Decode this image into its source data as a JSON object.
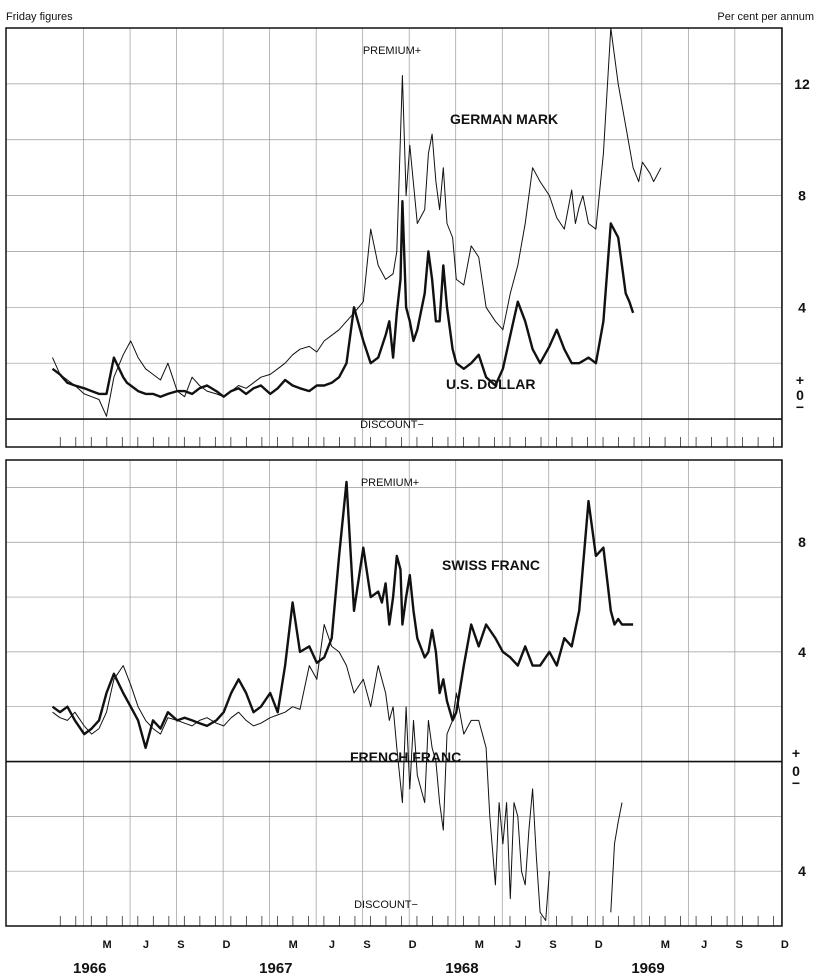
{
  "header": {
    "left_note": "Friday figures",
    "right_note": "Per cent per annum"
  },
  "chart_data": [
    {
      "type": "line",
      "panel": "top",
      "premium_label": "PREMIUM+",
      "discount_label": "DISCOUNT−",
      "zero_label_plus": "+",
      "zero_label": "0",
      "zero_label_minus": "−",
      "ylim": [
        -1,
        14
      ],
      "yticks": [
        0,
        4,
        8,
        12
      ],
      "ytick_labels": [
        "4",
        "8",
        "12"
      ],
      "grid": true,
      "series": [
        {
          "name": "GERMAN MARK",
          "style": "thin",
          "x": [
            1966.0,
            1966.04,
            1966.08,
            1966.12,
            1966.17,
            1966.21,
            1966.25,
            1966.29,
            1966.33,
            1966.38,
            1966.42,
            1966.44,
            1966.46,
            1966.5,
            1966.54,
            1966.58,
            1966.62,
            1966.67,
            1966.71,
            1966.75,
            1966.79,
            1966.83,
            1966.88,
            1966.92,
            1966.96,
            1967.0,
            1967.04,
            1967.08,
            1967.12,
            1967.17,
            1967.21,
            1967.25,
            1967.29,
            1967.33,
            1967.38,
            1967.42,
            1967.46,
            1967.5,
            1967.54,
            1967.58,
            1967.62,
            1967.67,
            1967.71,
            1967.75,
            1967.79,
            1967.83,
            1967.85,
            1967.88,
            1967.9,
            1967.92,
            1967.96,
            1968.0,
            1968.02,
            1968.04,
            1968.06,
            1968.08,
            1968.1,
            1968.12,
            1968.15,
            1968.17,
            1968.21,
            1968.25,
            1968.29,
            1968.33,
            1968.38,
            1968.42,
            1968.46,
            1968.5,
            1968.54,
            1968.58,
            1968.62,
            1968.67,
            1968.71,
            1968.75,
            1968.77,
            1968.79,
            1968.81,
            1968.83,
            1968.85,
            1968.88,
            1968.92,
            1968.96,
            1969.0,
            1969.04,
            1969.08,
            1969.12,
            1969.15,
            1969.17,
            1969.19,
            1969.21,
            1969.23,
            1969.27
          ],
          "values": [
            2.2,
            1.6,
            1.4,
            1.2,
            0.9,
            0.8,
            0.7,
            0.1,
            1.5,
            2.3,
            2.8,
            2.5,
            2.2,
            1.8,
            1.6,
            1.4,
            2.0,
            1.0,
            0.8,
            1.5,
            1.2,
            1.0,
            0.9,
            0.8,
            1.0,
            1.2,
            1.1,
            1.3,
            1.5,
            1.6,
            1.8,
            2.0,
            2.3,
            2.5,
            2.6,
            2.4,
            2.8,
            3.0,
            3.2,
            3.5,
            3.8,
            4.2,
            6.8,
            5.5,
            5.0,
            5.2,
            6.0,
            12.3,
            8.0,
            9.8,
            7.0,
            7.5,
            9.5,
            10.2,
            8.5,
            7.5,
            9.0,
            7.0,
            6.5,
            5.0,
            4.8,
            6.2,
            5.8,
            4.0,
            3.5,
            3.2,
            4.5,
            5.5,
            7.0,
            9.0,
            8.5,
            8.0,
            7.2,
            6.8,
            7.5,
            8.2,
            7.0,
            7.6,
            8.0,
            7.0,
            6.8,
            9.5,
            14.5,
            12.0,
            10.5,
            9.0,
            8.5,
            9.2,
            9.0,
            8.8,
            8.5,
            9.0
          ]
        },
        {
          "name": "U.S. DOLLAR",
          "style": "thick",
          "x": [
            1966.0,
            1966.04,
            1966.08,
            1966.12,
            1966.17,
            1966.21,
            1966.25,
            1966.29,
            1966.33,
            1966.38,
            1966.4,
            1966.42,
            1966.46,
            1966.5,
            1966.54,
            1966.58,
            1966.62,
            1966.67,
            1966.71,
            1966.75,
            1966.79,
            1966.83,
            1966.88,
            1966.92,
            1966.96,
            1967.0,
            1967.04,
            1967.08,
            1967.12,
            1967.17,
            1967.21,
            1967.25,
            1967.29,
            1967.33,
            1967.38,
            1967.42,
            1967.46,
            1967.5,
            1967.54,
            1967.58,
            1967.62,
            1967.67,
            1967.71,
            1967.75,
            1967.79,
            1967.81,
            1967.83,
            1967.85,
            1967.87,
            1967.88,
            1967.9,
            1967.92,
            1967.94,
            1967.96,
            1968.0,
            1968.02,
            1968.04,
            1968.06,
            1968.08,
            1968.1,
            1968.12,
            1968.15,
            1968.17,
            1968.21,
            1968.25,
            1968.29,
            1968.33,
            1968.38,
            1968.42,
            1968.46,
            1968.5,
            1968.54,
            1968.58,
            1968.62,
            1968.67,
            1968.71,
            1968.75,
            1968.79,
            1968.83,
            1968.88,
            1968.92,
            1968.96,
            1969.0,
            1969.04,
            1969.08,
            1969.1,
            1969.12
          ],
          "values": [
            1.8,
            1.6,
            1.3,
            1.2,
            1.1,
            1.0,
            0.9,
            0.9,
            2.2,
            1.5,
            1.3,
            1.2,
            1.0,
            0.9,
            0.9,
            0.8,
            0.9,
            1.0,
            1.0,
            0.9,
            1.1,
            1.2,
            1.0,
            0.8,
            1.0,
            1.1,
            0.9,
            1.1,
            1.2,
            0.9,
            1.1,
            1.4,
            1.2,
            1.1,
            1.0,
            1.2,
            1.2,
            1.3,
            1.5,
            2.0,
            4.0,
            2.8,
            2.0,
            2.2,
            3.0,
            3.5,
            2.2,
            3.8,
            5.0,
            7.8,
            4.0,
            3.5,
            2.8,
            3.2,
            4.5,
            6.0,
            5.0,
            3.5,
            3.5,
            5.5,
            4.0,
            2.5,
            2.0,
            1.8,
            2.0,
            2.3,
            1.5,
            1.2,
            1.8,
            3.0,
            4.2,
            3.5,
            2.5,
            2.0,
            2.6,
            3.2,
            2.5,
            2.0,
            2.0,
            2.2,
            2.0,
            3.5,
            7.0,
            6.5,
            4.5,
            4.2,
            3.8
          ]
        }
      ]
    },
    {
      "type": "line",
      "panel": "bottom",
      "premium_label": "PREMIUM+",
      "discount_label": "DISCOUNT−",
      "zero_label_plus": "+",
      "zero_label": "0",
      "zero_label_minus": "−",
      "ylim": [
        -6,
        11
      ],
      "yticks": [
        -4,
        0,
        4,
        8
      ],
      "ytick_labels": [
        "4",
        "4",
        "8"
      ],
      "grid": true,
      "series": [
        {
          "name": "SWISS FRANC",
          "style": "thick",
          "x": [
            1966.0,
            1966.04,
            1966.08,
            1966.12,
            1966.17,
            1966.21,
            1966.25,
            1966.29,
            1966.33,
            1966.38,
            1966.42,
            1966.46,
            1966.5,
            1966.54,
            1966.58,
            1966.62,
            1966.67,
            1966.71,
            1966.75,
            1966.79,
            1966.83,
            1966.88,
            1966.92,
            1966.96,
            1967.0,
            1967.04,
            1967.08,
            1967.12,
            1967.17,
            1967.21,
            1967.25,
            1967.29,
            1967.33,
            1967.38,
            1967.42,
            1967.46,
            1967.5,
            1967.54,
            1967.58,
            1967.62,
            1967.67,
            1967.71,
            1967.75,
            1967.77,
            1967.79,
            1967.81,
            1967.83,
            1967.85,
            1967.87,
            1967.88,
            1967.9,
            1967.92,
            1967.94,
            1967.96,
            1968.0,
            1968.02,
            1968.04,
            1968.06,
            1968.08,
            1968.1,
            1968.12,
            1968.15,
            1968.17,
            1968.21,
            1968.25,
            1968.29,
            1968.33,
            1968.38,
            1968.42,
            1968.46,
            1968.5,
            1968.54,
            1968.58,
            1968.62,
            1968.67,
            1968.71,
            1968.75,
            1968.79,
            1968.83,
            1968.88,
            1968.92,
            1968.96,
            1969.0,
            1969.02,
            1969.04,
            1969.06,
            1969.08,
            1969.1,
            1969.12
          ],
          "values": [
            2.0,
            1.8,
            2.0,
            1.5,
            1.0,
            1.2,
            1.5,
            2.5,
            3.2,
            2.5,
            2.0,
            1.5,
            0.5,
            1.5,
            1.2,
            1.8,
            1.5,
            1.6,
            1.5,
            1.4,
            1.3,
            1.5,
            1.8,
            2.5,
            3.0,
            2.5,
            1.8,
            2.0,
            2.5,
            1.8,
            3.5,
            5.8,
            4.0,
            4.2,
            3.6,
            3.8,
            4.5,
            7.5,
            10.2,
            5.5,
            7.8,
            6.0,
            6.2,
            5.8,
            6.5,
            5.0,
            6.0,
            7.5,
            7.0,
            5.0,
            6.0,
            6.8,
            5.5,
            4.5,
            3.8,
            4.0,
            4.8,
            4.0,
            2.5,
            3.0,
            2.2,
            1.5,
            1.8,
            3.5,
            5.0,
            4.2,
            5.0,
            4.5,
            4.0,
            3.8,
            3.5,
            4.2,
            3.5,
            3.5,
            4.0,
            3.5,
            4.5,
            4.2,
            5.5,
            9.5,
            7.5,
            7.8,
            5.5,
            5.0,
            5.2,
            5.0,
            5.0,
            5.0,
            5.0
          ]
        },
        {
          "name": "FRENCH FRANC",
          "style": "thin",
          "x": [
            1966.0,
            1966.04,
            1966.08,
            1966.12,
            1966.17,
            1966.21,
            1966.25,
            1966.29,
            1966.33,
            1966.38,
            1966.42,
            1966.46,
            1966.5,
            1966.54,
            1966.58,
            1966.62,
            1966.67,
            1966.71,
            1966.75,
            1966.79,
            1966.83,
            1966.88,
            1966.92,
            1966.96,
            1967.0,
            1967.04,
            1967.08,
            1967.12,
            1967.17,
            1967.21,
            1967.25,
            1967.29,
            1967.33,
            1967.38,
            1967.42,
            1967.46,
            1967.5,
            1967.54,
            1967.58,
            1967.62,
            1967.67,
            1967.71,
            1967.75,
            1967.79,
            1967.81,
            1967.83,
            1967.85,
            1967.88,
            1967.9,
            1967.92,
            1967.94,
            1967.96,
            1968.0,
            1968.02,
            1968.04,
            1968.06,
            1968.08,
            1968.1,
            1968.12,
            1968.15,
            1968.17,
            1968.21,
            1968.25,
            1968.29,
            1968.33,
            1968.35,
            1968.38,
            1968.4,
            1968.42,
            1968.44,
            1968.46,
            1968.48,
            1968.5,
            1968.52,
            1968.54,
            1968.56,
            1968.58,
            1968.6,
            1968.62,
            1968.65,
            1968.67
          ],
          "values": [
            1.8,
            1.6,
            1.5,
            1.8,
            1.3,
            1.0,
            1.2,
            1.8,
            3.0,
            3.5,
            2.8,
            2.0,
            1.5,
            1.2,
            1.0,
            1.6,
            1.5,
            1.4,
            1.3,
            1.5,
            1.6,
            1.4,
            1.3,
            1.6,
            1.8,
            1.5,
            1.3,
            1.4,
            1.6,
            1.7,
            1.8,
            2.0,
            1.9,
            3.5,
            3.0,
            5.0,
            4.2,
            4.0,
            3.5,
            2.5,
            3.0,
            2.0,
            3.5,
            2.5,
            1.5,
            2.0,
            0.5,
            -1.5,
            2.0,
            -1.0,
            1.5,
            -0.5,
            -1.5,
            1.5,
            0.5,
            0.0,
            -1.5,
            -2.5,
            1.0,
            1.5,
            2.5,
            1.0,
            1.5,
            1.5,
            0.5,
            -2.0,
            -4.5,
            -1.5,
            -3.0,
            -1.5,
            -5.0,
            -1.5,
            -2.0,
            -4.0,
            -4.5,
            -2.5,
            -1.0,
            -3.5,
            -5.5,
            -5.8,
            -4.0
          ]
        },
        {
          "name": "",
          "style": "thin",
          "x": [
            1969.0,
            1969.02,
            1969.04,
            1969.06
          ],
          "values": [
            -5.5,
            -3.0,
            -2.2,
            -1.5
          ]
        }
      ]
    }
  ],
  "x_axis": {
    "month_labels": [
      "M",
      "J",
      "S",
      "D",
      "M",
      "J",
      "S",
      "D",
      "M",
      "J",
      "S",
      "D",
      "M",
      "J",
      "S",
      "D"
    ],
    "year_labels": [
      "1966",
      "1967",
      "1968",
      "1969"
    ]
  }
}
